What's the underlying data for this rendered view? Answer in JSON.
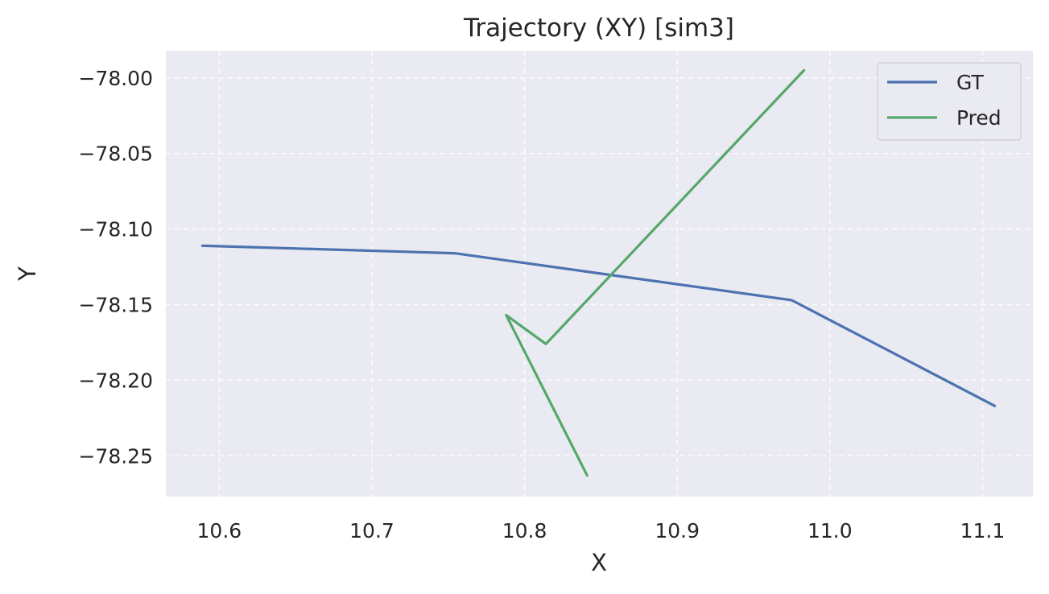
{
  "chart_data": {
    "type": "line",
    "title": "Trajectory (XY) [sim3]",
    "xlabel": "X",
    "ylabel": "Y",
    "xlim": [
      10.565,
      11.133
    ],
    "ylim": [
      -78.277,
      -77.982
    ],
    "xticks": [
      10.6,
      10.7,
      10.8,
      10.9,
      11.0,
      11.1
    ],
    "xtick_labels": [
      "10.6",
      "10.7",
      "10.8",
      "10.9",
      "11.0",
      "11.1"
    ],
    "yticks": [
      -78.0,
      -78.05,
      -78.1,
      -78.15,
      -78.2,
      -78.25
    ],
    "ytick_labels": [
      "−78.00",
      "−78.05",
      "−78.10",
      "−78.15",
      "−78.20",
      "−78.25"
    ],
    "grid": true,
    "legend_position": "top-right",
    "series": [
      {
        "name": "GT",
        "color": "#4c72b0",
        "x": [
          10.589,
          10.754,
          10.975,
          11.108
        ],
        "y": [
          -78.111,
          -78.116,
          -78.147,
          -78.217
        ]
      },
      {
        "name": "Pred",
        "color": "#55a868",
        "x": [
          10.841,
          10.788,
          10.814,
          10.983
        ],
        "y": [
          -78.263,
          -78.157,
          -78.176,
          -77.995
        ]
      }
    ]
  }
}
